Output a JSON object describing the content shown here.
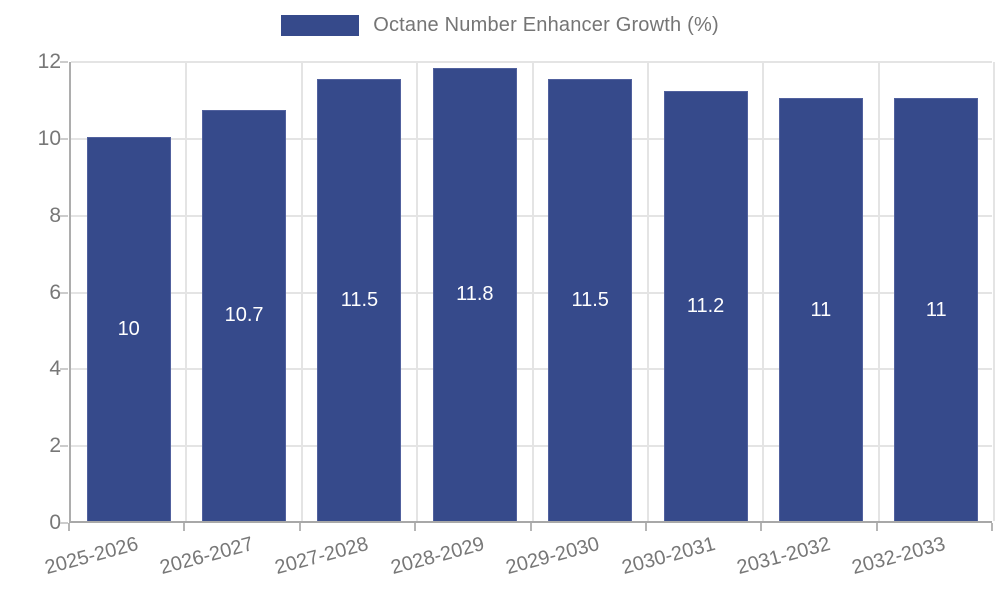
{
  "chart_data": {
    "type": "bar",
    "title": "Octane Number Enhancer Growth (%)",
    "categories": [
      "2025-2026",
      "2026-2027",
      "2027-2028",
      "2028-2029",
      "2029-2030",
      "2030-2031",
      "2031-2032",
      "2032-2033"
    ],
    "values": [
      10,
      10.7,
      11.5,
      11.8,
      11.5,
      11.2,
      11,
      11
    ],
    "value_labels": [
      "10",
      "10.7",
      "11.5",
      "11.8",
      "11.5",
      "11.2",
      "11",
      "11"
    ],
    "xlabel": "",
    "ylabel": "",
    "ylim": [
      0,
      12
    ],
    "yticks": [
      0,
      2,
      4,
      6,
      8,
      10,
      12
    ],
    "grid": true,
    "legend_position": "top-center",
    "colors": {
      "bar": "#364a8b",
      "bar_border": "#51619e",
      "bar_label_text": "#ffffff",
      "axis_line": "#adadad",
      "grid_line": "#e4e4e4",
      "tick_text": "#777777",
      "legend_text": "#757575",
      "background": "#ffffff"
    }
  }
}
